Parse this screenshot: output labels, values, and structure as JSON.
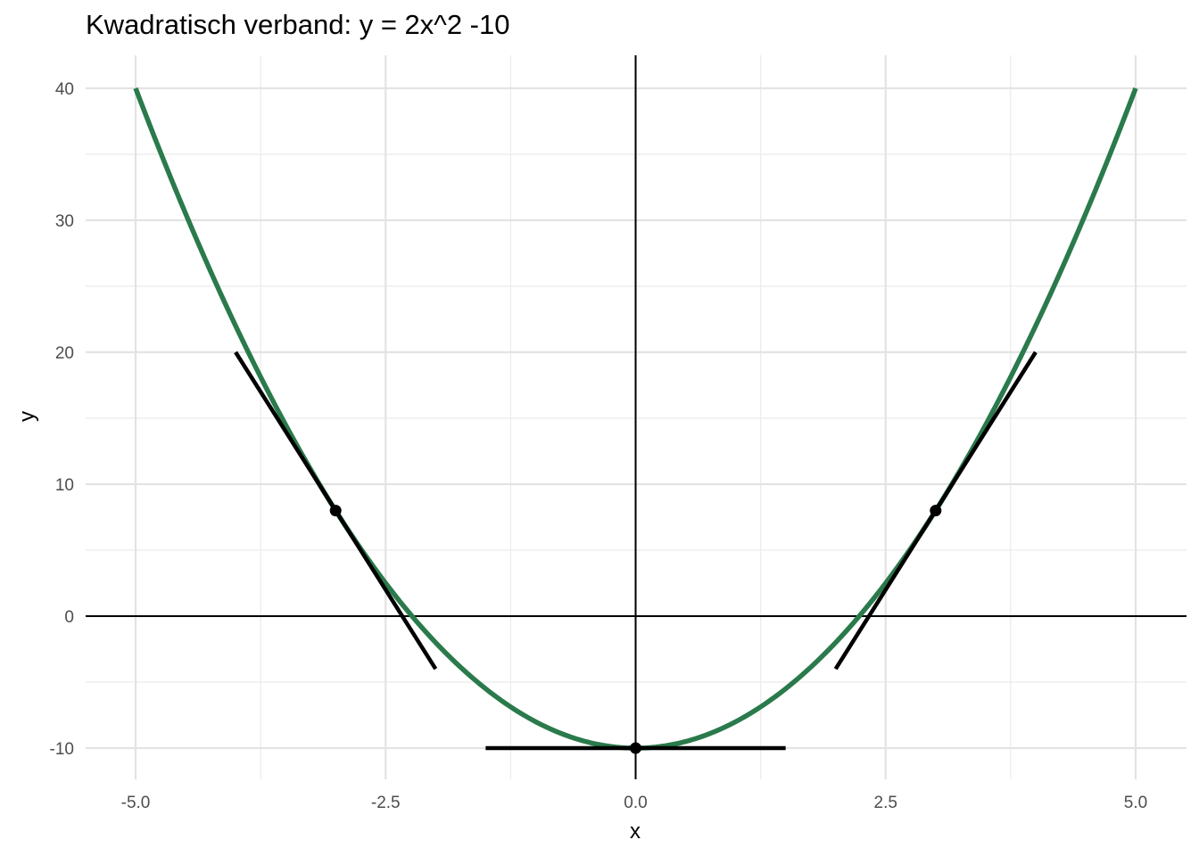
{
  "chart_data": {
    "type": "line",
    "title": "Kwadratisch verband: y = 2x^2 -10",
    "xlabel": "x",
    "ylabel": "y",
    "xlim": [
      -5.0,
      5.0
    ],
    "ylim": [
      -10,
      40
    ],
    "x_ticks": [
      -5.0,
      -2.5,
      0.0,
      2.5,
      5.0
    ],
    "x_tick_labels": [
      "-5.0",
      "-2.5",
      "0.0",
      "2.5",
      "5.0"
    ],
    "y_ticks": [
      -10,
      0,
      10,
      20,
      30,
      40
    ],
    "y_tick_labels": [
      "-10",
      "0",
      "10",
      "20",
      "30",
      "40"
    ],
    "grid": true,
    "reference_lines": {
      "x": 0,
      "y": 0
    },
    "curve": {
      "function": "y = 2x^2 - 10",
      "x_from": -5,
      "x_to": 5,
      "color": "#2a7a4b"
    },
    "tangent_points": [
      {
        "x": -3,
        "y": 8,
        "slope": -12,
        "tangent_x_range": [
          -4,
          -2
        ]
      },
      {
        "x": 0,
        "y": -10,
        "slope": 0,
        "tangent_x_range": [
          -1.5,
          1.5
        ]
      },
      {
        "x": 3,
        "y": 8,
        "slope": 12,
        "tangent_x_range": [
          2,
          4
        ]
      }
    ],
    "tangent_color": "#000000"
  }
}
